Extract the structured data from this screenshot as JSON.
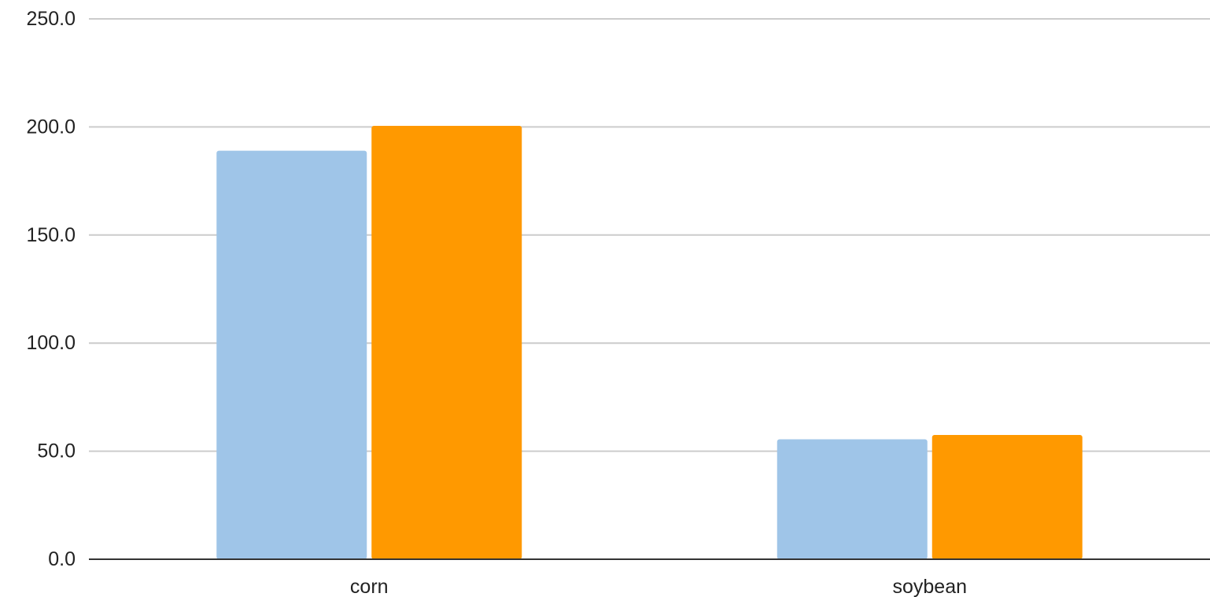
{
  "chart_data": {
    "type": "bar",
    "title": "",
    "xlabel": "",
    "ylabel": "",
    "categories": [
      "corn",
      "soybean"
    ],
    "series": [
      {
        "values": [
          189.0,
          55.5
        ],
        "color": "#9fc5e8"
      },
      {
        "values": [
          200.5,
          57.5
        ],
        "color": "#ff9900"
      }
    ],
    "ylim": [
      0,
      250
    ],
    "yticks": [
      0,
      50,
      100,
      150,
      200,
      250
    ],
    "ytick_labels": [
      "0.0",
      "50.0",
      "100.0",
      "150.0",
      "200.0",
      "250.0"
    ],
    "grid": true,
    "legend": "none",
    "colors": {
      "gridline": "#cccccc",
      "baseline": "#333333"
    }
  }
}
